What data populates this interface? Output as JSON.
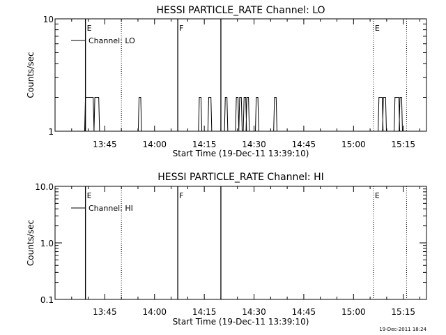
{
  "footer": {
    "timestamp": "19-Dec-2011 18:24"
  },
  "x_ticks": [
    "13:45",
    "14:00",
    "14:15",
    "14:30",
    "14:45",
    "15:00",
    "15:15"
  ],
  "x_tick_minutes": [
    825,
    840,
    855,
    870,
    885,
    900,
    915
  ],
  "x_range_minutes": [
    810,
    922
  ],
  "xlabel": "Start Time (19-Dec-11 13:39:10)",
  "chart_data": [
    {
      "type": "line",
      "title": "HESSI PARTICLE_RATE Channel: LO",
      "xlabel": "Start Time (19-Dec-11 13:39:10)",
      "ylabel": "Counts/sec",
      "yscale": "log",
      "ylim": [
        1,
        10
      ],
      "y_tick_labels": [
        "1",
        "10"
      ],
      "y_tick_values": [
        1,
        10
      ],
      "xlim": [
        "13:30",
        "15:22"
      ],
      "legend": {
        "entries": [
          "Channel: LO"
        ],
        "position": "top-left"
      },
      "series": [
        {
          "name": "Channel: LO",
          "color": "#000000",
          "spikes_y2": [
            [
              "13:39:10",
              "13:41:30"
            ],
            [
              "13:42:00",
              "13:43:10"
            ],
            [
              "13:55:20",
              "13:55:50"
            ],
            [
              "14:13:30",
              "14:14:00"
            ],
            [
              "14:16:20",
              "14:17:00"
            ],
            [
              "14:21:20",
              "14:21:50"
            ],
            [
              "14:24:40",
              "14:25:10"
            ],
            [
              "14:25:40",
              "14:26:10"
            ],
            [
              "14:27:00",
              "14:27:30"
            ],
            [
              "14:27:50",
              "14:28:20"
            ],
            [
              "14:30:40",
              "14:31:10"
            ],
            [
              "14:36:10",
              "14:36:40"
            ],
            [
              "15:07:40",
              "15:08:40"
            ],
            [
              "15:09:00",
              "15:09:40"
            ],
            [
              "15:12:30",
              "15:13:40"
            ],
            [
              "15:14:00",
              "15:14:30"
            ]
          ]
        }
      ],
      "markers": [
        {
          "time": "13:39:10",
          "style": "solid",
          "label": "E"
        },
        {
          "time": "13:50",
          "style": "dotted",
          "label": ""
        },
        {
          "time": "14:07",
          "style": "solid",
          "label": "F"
        },
        {
          "time": "14:20",
          "style": "solid",
          "label": ""
        },
        {
          "time": "15:06",
          "style": "dotted",
          "label": "E"
        },
        {
          "time": "15:16",
          "style": "dotted",
          "label": ""
        }
      ]
    },
    {
      "type": "line",
      "title": "HESSI PARTICLE_RATE Channel: HI",
      "xlabel": "Start Time (19-Dec-11 13:39:10)",
      "ylabel": "Counts/sec",
      "yscale": "log",
      "ylim": [
        0.1,
        10
      ],
      "y_tick_labels": [
        "0.1",
        "1.0",
        "10.0"
      ],
      "y_tick_values": [
        0.1,
        1,
        10
      ],
      "xlim": [
        "13:30",
        "15:22"
      ],
      "legend": {
        "entries": [
          "Channel: HI"
        ],
        "position": "top-left"
      },
      "series": [
        {
          "name": "Channel: HI",
          "color": "#000000",
          "spikes_y2": []
        }
      ],
      "markers": [
        {
          "time": "13:39:10",
          "style": "solid",
          "label": "E"
        },
        {
          "time": "13:50",
          "style": "dotted",
          "label": ""
        },
        {
          "time": "14:07",
          "style": "solid",
          "label": "F"
        },
        {
          "time": "14:20",
          "style": "solid",
          "label": ""
        },
        {
          "time": "15:06",
          "style": "dotted",
          "label": "E"
        },
        {
          "time": "15:16",
          "style": "dotted",
          "label": ""
        }
      ]
    }
  ]
}
